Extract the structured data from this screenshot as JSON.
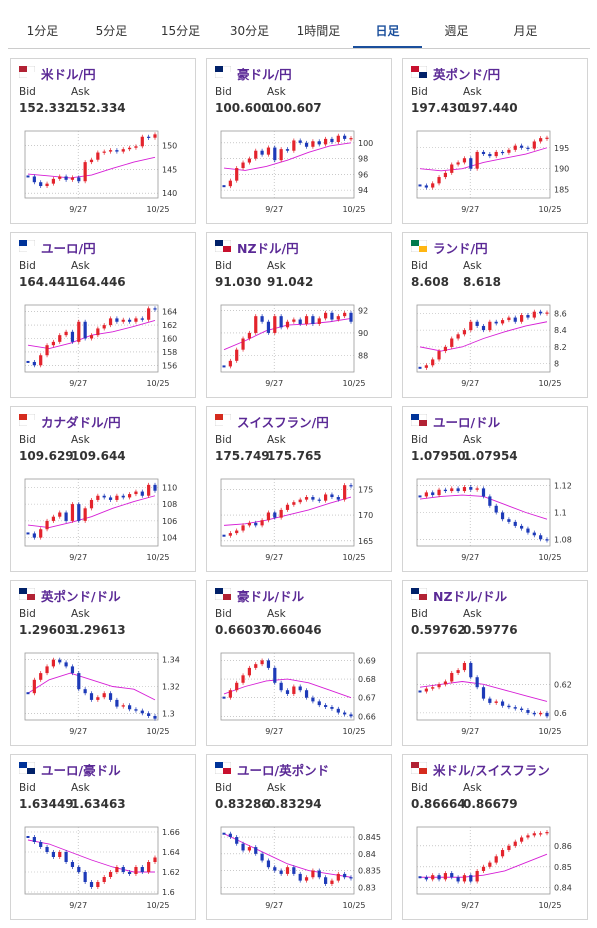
{
  "tabs": [
    "1分足",
    "5分足",
    "15分足",
    "30分足",
    "1時間足",
    "日足",
    "週足",
    "月足"
  ],
  "chart_style": {
    "up_color": "#e3232c",
    "down_color": "#1d3ab8",
    "ma_color": "#d61ed6"
  },
  "quotes": [
    {
      "pair": "米ドル/円",
      "bid_label": "Bid",
      "ask_label": "Ask",
      "bid": "152.332",
      "ask": "152.334",
      "chart": {
        "type": "candlestick",
        "closes": [
          143.5,
          142.3,
          141.5,
          142.0,
          143.0,
          143.5,
          142.8,
          143.3,
          142.5,
          146.5,
          147.0,
          148.5,
          148.7,
          149.0,
          148.7,
          149.2,
          149.5,
          149.8,
          151.8,
          151.6,
          152.3
        ],
        "ma": [
          144,
          143.6,
          143.2,
          143.8,
          145.2,
          146.5,
          147.5
        ],
        "ylim": [
          139,
          153
        ],
        "yticks": [
          140,
          145,
          150
        ],
        "x_labels": [
          "9/27",
          "10/25"
        ]
      }
    },
    {
      "pair": "豪ドル/円",
      "bid_label": "Bid",
      "ask_label": "Ask",
      "bid": "100.600",
      "ask": "100.607",
      "chart": {
        "type": "candlestick",
        "closes": [
          94.5,
          95.2,
          96.8,
          97.5,
          98.0,
          99.0,
          98.5,
          99.4,
          97.8,
          99.2,
          99.0,
          100.3,
          100.0,
          99.5,
          100.2,
          99.8,
          100.5,
          100.1,
          100.9,
          100.5,
          100.6
        ],
        "ma": [
          96.8,
          96.5,
          97.0,
          97.8,
          98.8,
          99.6,
          100.0
        ],
        "ylim": [
          93,
          101.5
        ],
        "yticks": [
          94,
          96,
          98,
          100
        ],
        "x_labels": [
          "9/27",
          "10/25"
        ]
      }
    },
    {
      "pair": "英ポンド/円",
      "bid_label": "Bid",
      "ask_label": "Ask",
      "bid": "197.430",
      "ask": "197.440",
      "chart": {
        "type": "candlestick",
        "closes": [
          186,
          185.5,
          186.5,
          188,
          189,
          191,
          191.5,
          192.5,
          190,
          194,
          193.5,
          193,
          194,
          193.8,
          194.5,
          195.5,
          195,
          194.8,
          196.5,
          197.3,
          197.4
        ],
        "ma": [
          190,
          189.5,
          190,
          191.5,
          192.5,
          193.5,
          195
        ],
        "ylim": [
          183,
          199
        ],
        "yticks": [
          185,
          190,
          195
        ],
        "x_labels": [
          "9/27",
          "10/25"
        ]
      }
    },
    {
      "pair": "ユーロ/円",
      "bid_label": "Bid",
      "ask_label": "Ask",
      "bid": "164.441",
      "ask": "164.446",
      "chart": {
        "type": "candlestick",
        "closes": [
          156.5,
          156,
          157.5,
          159,
          159.5,
          160.5,
          161,
          159.5,
          162.5,
          160,
          160.5,
          161.5,
          162,
          163,
          162.5,
          162.8,
          162.5,
          163,
          162.8,
          164.5,
          164.4
        ],
        "ma": [
          159,
          158.5,
          159.3,
          160.5,
          161,
          161.8,
          162.7
        ],
        "ylim": [
          155,
          165
        ],
        "yticks": [
          156,
          158,
          160,
          162,
          164
        ],
        "x_labels": [
          "9/27",
          "10/25"
        ]
      }
    },
    {
      "pair": "NZドル/円",
      "bid_label": "Bid",
      "ask_label": "Ask",
      "bid": "91.030",
      "ask": "91.042",
      "chart": {
        "type": "candlestick",
        "closes": [
          87,
          87.5,
          88.5,
          89.5,
          90,
          91.5,
          91,
          90,
          91.5,
          90.5,
          91,
          91.2,
          90.8,
          91.5,
          90.8,
          91.3,
          91.8,
          91.2,
          91.5,
          91.8,
          91.0
        ],
        "ma": [
          88.5,
          89.3,
          90.2,
          90.7,
          90.8,
          91.0,
          91.3
        ],
        "ylim": [
          86.5,
          92.5
        ],
        "yticks": [
          88,
          90,
          92
        ],
        "x_labels": [
          "9/27",
          "10/25"
        ]
      }
    },
    {
      "pair": "ランド/円",
      "bid_label": "Bid",
      "ask_label": "Ask",
      "bid": "8.608",
      "ask": "8.618",
      "chart": {
        "type": "candlestick",
        "closes": [
          7.95,
          7.98,
          8.05,
          8.15,
          8.2,
          8.3,
          8.35,
          8.4,
          8.5,
          8.45,
          8.4,
          8.5,
          8.48,
          8.52,
          8.55,
          8.5,
          8.58,
          8.55,
          8.62,
          8.6,
          8.61
        ],
        "ma": [
          8.2,
          8.15,
          8.2,
          8.3,
          8.38,
          8.45,
          8.5
        ],
        "ylim": [
          7.9,
          8.7
        ],
        "yticks": [
          8,
          8.2,
          8.4,
          8.6
        ],
        "x_labels": [
          "9/27",
          "10/25"
        ]
      }
    },
    {
      "pair": "カナダドル/円",
      "bid_label": "Bid",
      "ask_label": "Ask",
      "bid": "109.629",
      "ask": "109.644",
      "chart": {
        "type": "candlestick",
        "closes": [
          104.5,
          104,
          105,
          106,
          106.5,
          107,
          106,
          108,
          106,
          107.5,
          108.5,
          109,
          108.8,
          108.5,
          109,
          108.8,
          109.2,
          109.5,
          109,
          110.3,
          109.6
        ],
        "ma": [
          105.5,
          105.2,
          105.8,
          106.5,
          107.5,
          108.3,
          109
        ],
        "ylim": [
          103,
          111
        ],
        "yticks": [
          104,
          106,
          108,
          110
        ],
        "x_labels": [
          "9/27",
          "10/25"
        ]
      }
    },
    {
      "pair": "スイスフラン/円",
      "bid_label": "Bid",
      "ask_label": "Ask",
      "bid": "175.749",
      "ask": "175.765",
      "chart": {
        "type": "candlestick",
        "closes": [
          166,
          166.5,
          167,
          168,
          168.5,
          168,
          169,
          170.5,
          169.5,
          171,
          172,
          172.5,
          173,
          173.5,
          173,
          172.8,
          174,
          173.5,
          173,
          175.8,
          175.7
        ],
        "ma": [
          168,
          168.3,
          169,
          170,
          171,
          172.3,
          173.5
        ],
        "ylim": [
          164,
          177
        ],
        "yticks": [
          165,
          170,
          175
        ],
        "x_labels": [
          "9/27",
          "10/25"
        ]
      }
    },
    {
      "pair": "ユーロ/ドル",
      "bid_label": "Bid",
      "ask_label": "Ask",
      "bid": "1.07950",
      "ask": "1.07954",
      "chart": {
        "type": "candlestick",
        "closes": [
          1.112,
          1.115,
          1.113,
          1.117,
          1.116,
          1.118,
          1.116,
          1.119,
          1.117,
          1.118,
          1.112,
          1.105,
          1.1,
          1.095,
          1.093,
          1.09,
          1.088,
          1.085,
          1.083,
          1.08,
          1.0795
        ],
        "ma": [
          1.11,
          1.112,
          1.113,
          1.112,
          1.106,
          1.1,
          1.095
        ],
        "ylim": [
          1.075,
          1.125
        ],
        "yticks": [
          1.08,
          1.1,
          1.12
        ],
        "x_labels": [
          "9/27",
          "10/25"
        ]
      }
    },
    {
      "pair": "英ポンド/ドル",
      "bid_label": "Bid",
      "ask_label": "Ask",
      "bid": "1.29603",
      "ask": "1.29613",
      "chart": {
        "type": "candlestick",
        "closes": [
          1.315,
          1.325,
          1.33,
          1.335,
          1.34,
          1.338,
          1.335,
          1.33,
          1.318,
          1.315,
          1.31,
          1.312,
          1.315,
          1.31,
          1.305,
          1.306,
          1.303,
          1.302,
          1.3,
          1.298,
          1.296
        ],
        "ma": [
          1.315,
          1.325,
          1.33,
          1.325,
          1.32,
          1.318,
          1.31
        ],
        "ylim": [
          1.295,
          1.345
        ],
        "yticks": [
          1.3,
          1.32,
          1.34
        ],
        "x_labels": [
          "9/27",
          "10/25"
        ]
      }
    },
    {
      "pair": "豪ドル/ドル",
      "bid_label": "Bid",
      "ask_label": "Ask",
      "bid": "0.66037",
      "ask": "0.66046",
      "chart": {
        "type": "candlestick",
        "closes": [
          0.67,
          0.674,
          0.678,
          0.682,
          0.686,
          0.688,
          0.69,
          0.686,
          0.678,
          0.674,
          0.672,
          0.676,
          0.674,
          0.67,
          0.668,
          0.666,
          0.665,
          0.664,
          0.662,
          0.661,
          0.66
        ],
        "ma": [
          0.672,
          0.676,
          0.679,
          0.68,
          0.678,
          0.674,
          0.67
        ],
        "ylim": [
          0.658,
          0.694
        ],
        "yticks": [
          0.66,
          0.67,
          0.68,
          0.69
        ],
        "x_labels": [
          "9/27",
          "10/25"
        ]
      }
    },
    {
      "pair": "NZドル/ドル",
      "bid_label": "Bid",
      "ask_label": "Ask",
      "bid": "0.59762",
      "ask": "0.59776",
      "chart": {
        "type": "candlestick",
        "closes": [
          0.615,
          0.617,
          0.618,
          0.62,
          0.622,
          0.628,
          0.63,
          0.635,
          0.625,
          0.618,
          0.61,
          0.607,
          0.608,
          0.605,
          0.604,
          0.603,
          0.602,
          0.6,
          0.599,
          0.6,
          0.5976
        ],
        "ma": [
          0.618,
          0.62,
          0.622,
          0.62,
          0.616,
          0.612,
          0.608
        ],
        "ylim": [
          0.595,
          0.642
        ],
        "yticks": [
          0.6,
          0.62
        ],
        "x_labels": [
          "9/27",
          "10/25"
        ]
      }
    },
    {
      "pair": "ユーロ/豪ドル",
      "bid_label": "Bid",
      "ask_label": "Ask",
      "bid": "1.63449",
      "ask": "1.63463",
      "chart": {
        "type": "candlestick",
        "closes": [
          1.655,
          1.65,
          1.645,
          1.64,
          1.635,
          1.64,
          1.63,
          1.625,
          1.62,
          1.61,
          1.605,
          1.61,
          1.615,
          1.62,
          1.625,
          1.62,
          1.618,
          1.625,
          1.62,
          1.63,
          1.6345
        ],
        "ma": [
          1.652,
          1.648,
          1.64,
          1.632,
          1.625,
          1.62,
          1.62
        ],
        "ylim": [
          1.598,
          1.665
        ],
        "yticks": [
          1.6,
          1.62,
          1.64,
          1.66
        ],
        "x_labels": [
          "9/27",
          "10/25"
        ]
      }
    },
    {
      "pair": "ユーロ/英ポンド",
      "bid_label": "Bid",
      "ask_label": "Ask",
      "bid": "0.83286",
      "ask": "0.83294",
      "chart": {
        "type": "candlestick",
        "closes": [
          0.846,
          0.845,
          0.843,
          0.841,
          0.842,
          0.84,
          0.838,
          0.836,
          0.835,
          0.834,
          0.836,
          0.834,
          0.832,
          0.833,
          0.835,
          0.833,
          0.831,
          0.832,
          0.834,
          0.833,
          0.8329
        ],
        "ma": [
          0.846,
          0.843,
          0.84,
          0.837,
          0.835,
          0.834,
          0.833
        ],
        "ylim": [
          0.828,
          0.848
        ],
        "yticks": [
          0.83,
          0.835,
          0.84,
          0.845
        ],
        "x_labels": [
          "9/27",
          "10/25"
        ]
      }
    },
    {
      "pair": "米ドル/スイスフラン",
      "bid_label": "Bid",
      "ask_label": "Ask",
      "bid": "0.86664",
      "ask": "0.86679",
      "chart": {
        "type": "candlestick",
        "closes": [
          0.845,
          0.844,
          0.846,
          0.844,
          0.847,
          0.845,
          0.843,
          0.846,
          0.843,
          0.848,
          0.85,
          0.852,
          0.855,
          0.858,
          0.86,
          0.862,
          0.864,
          0.865,
          0.866,
          0.866,
          0.8666
        ],
        "ma": [
          0.845,
          0.845,
          0.845,
          0.846,
          0.848,
          0.852,
          0.856
        ],
        "ylim": [
          0.837,
          0.869
        ],
        "yticks": [
          0.84,
          0.85,
          0.86
        ],
        "x_labels": [
          "9/27",
          "10/25"
        ]
      }
    }
  ]
}
